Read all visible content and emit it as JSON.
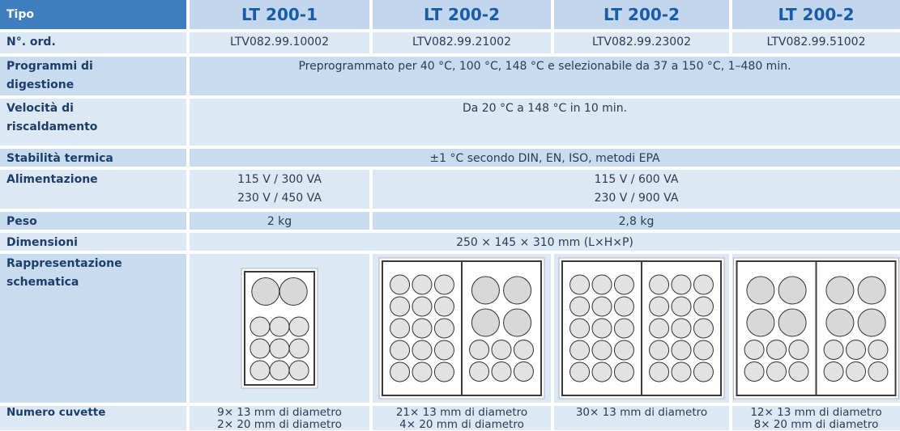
{
  "table": {
    "header": [
      "Tipo",
      "LT 200-1",
      "LT 200-2",
      "LT 200-2",
      "LT 200-2"
    ],
    "rows": [
      {
        "label": "N°. ord.",
        "cells": [
          [
            "LTV082.99.10002"
          ],
          [
            "LTV082.99.21002"
          ],
          [
            "LTV082.99.23002"
          ],
          [
            "LTV082.99.51002"
          ]
        ]
      },
      {
        "label": "Programmi di digestione",
        "cells": [
          [
            "Preprogrammato per 40 °C, 100 °C, 148 °C e selezionabile da 37 a 150 °C, 1–480 min."
          ]
        ]
      },
      {
        "label": "Velocità di riscaldamento",
        "cells": [
          [
            "Da 20 °C a 148 °C in 10 min."
          ]
        ]
      },
      {
        "label": "Stabilità termica",
        "cells": [
          [
            "±1 °C secondo DIN, EN, ISO, metodi EPA"
          ]
        ]
      },
      {
        "label": "Alimentazione",
        "cells": [
          [
            "115 V / 300 VA",
            "230 V / 450 VA"
          ],
          [
            "115 V / 600 VA",
            "230 V / 900 VA"
          ]
        ]
      },
      {
        "label": "Peso",
        "cells": [
          [
            "2 kg"
          ],
          [
            "2,8 kg"
          ]
        ]
      },
      {
        "label": "Dimensioni",
        "cells": [
          [
            "250 × 145 × 310 mm (L×H×P)"
          ]
        ]
      },
      {
        "label": "Rappresentazione schematica",
        "cells": []
      },
      {
        "label": "Numero cuvette",
        "cells": [
          [
            "9× 13 mm di diametro",
            "2× 20 mm di diametro"
          ],
          [
            "21× 13 mm di diametro",
            "4× 20 mm di diametro"
          ],
          [
            "30× 13 mm di diametro"
          ],
          [
            "12× 13 mm di diametro",
            "8× 20 mm di diametro"
          ]
        ]
      }
    ]
  }
}
